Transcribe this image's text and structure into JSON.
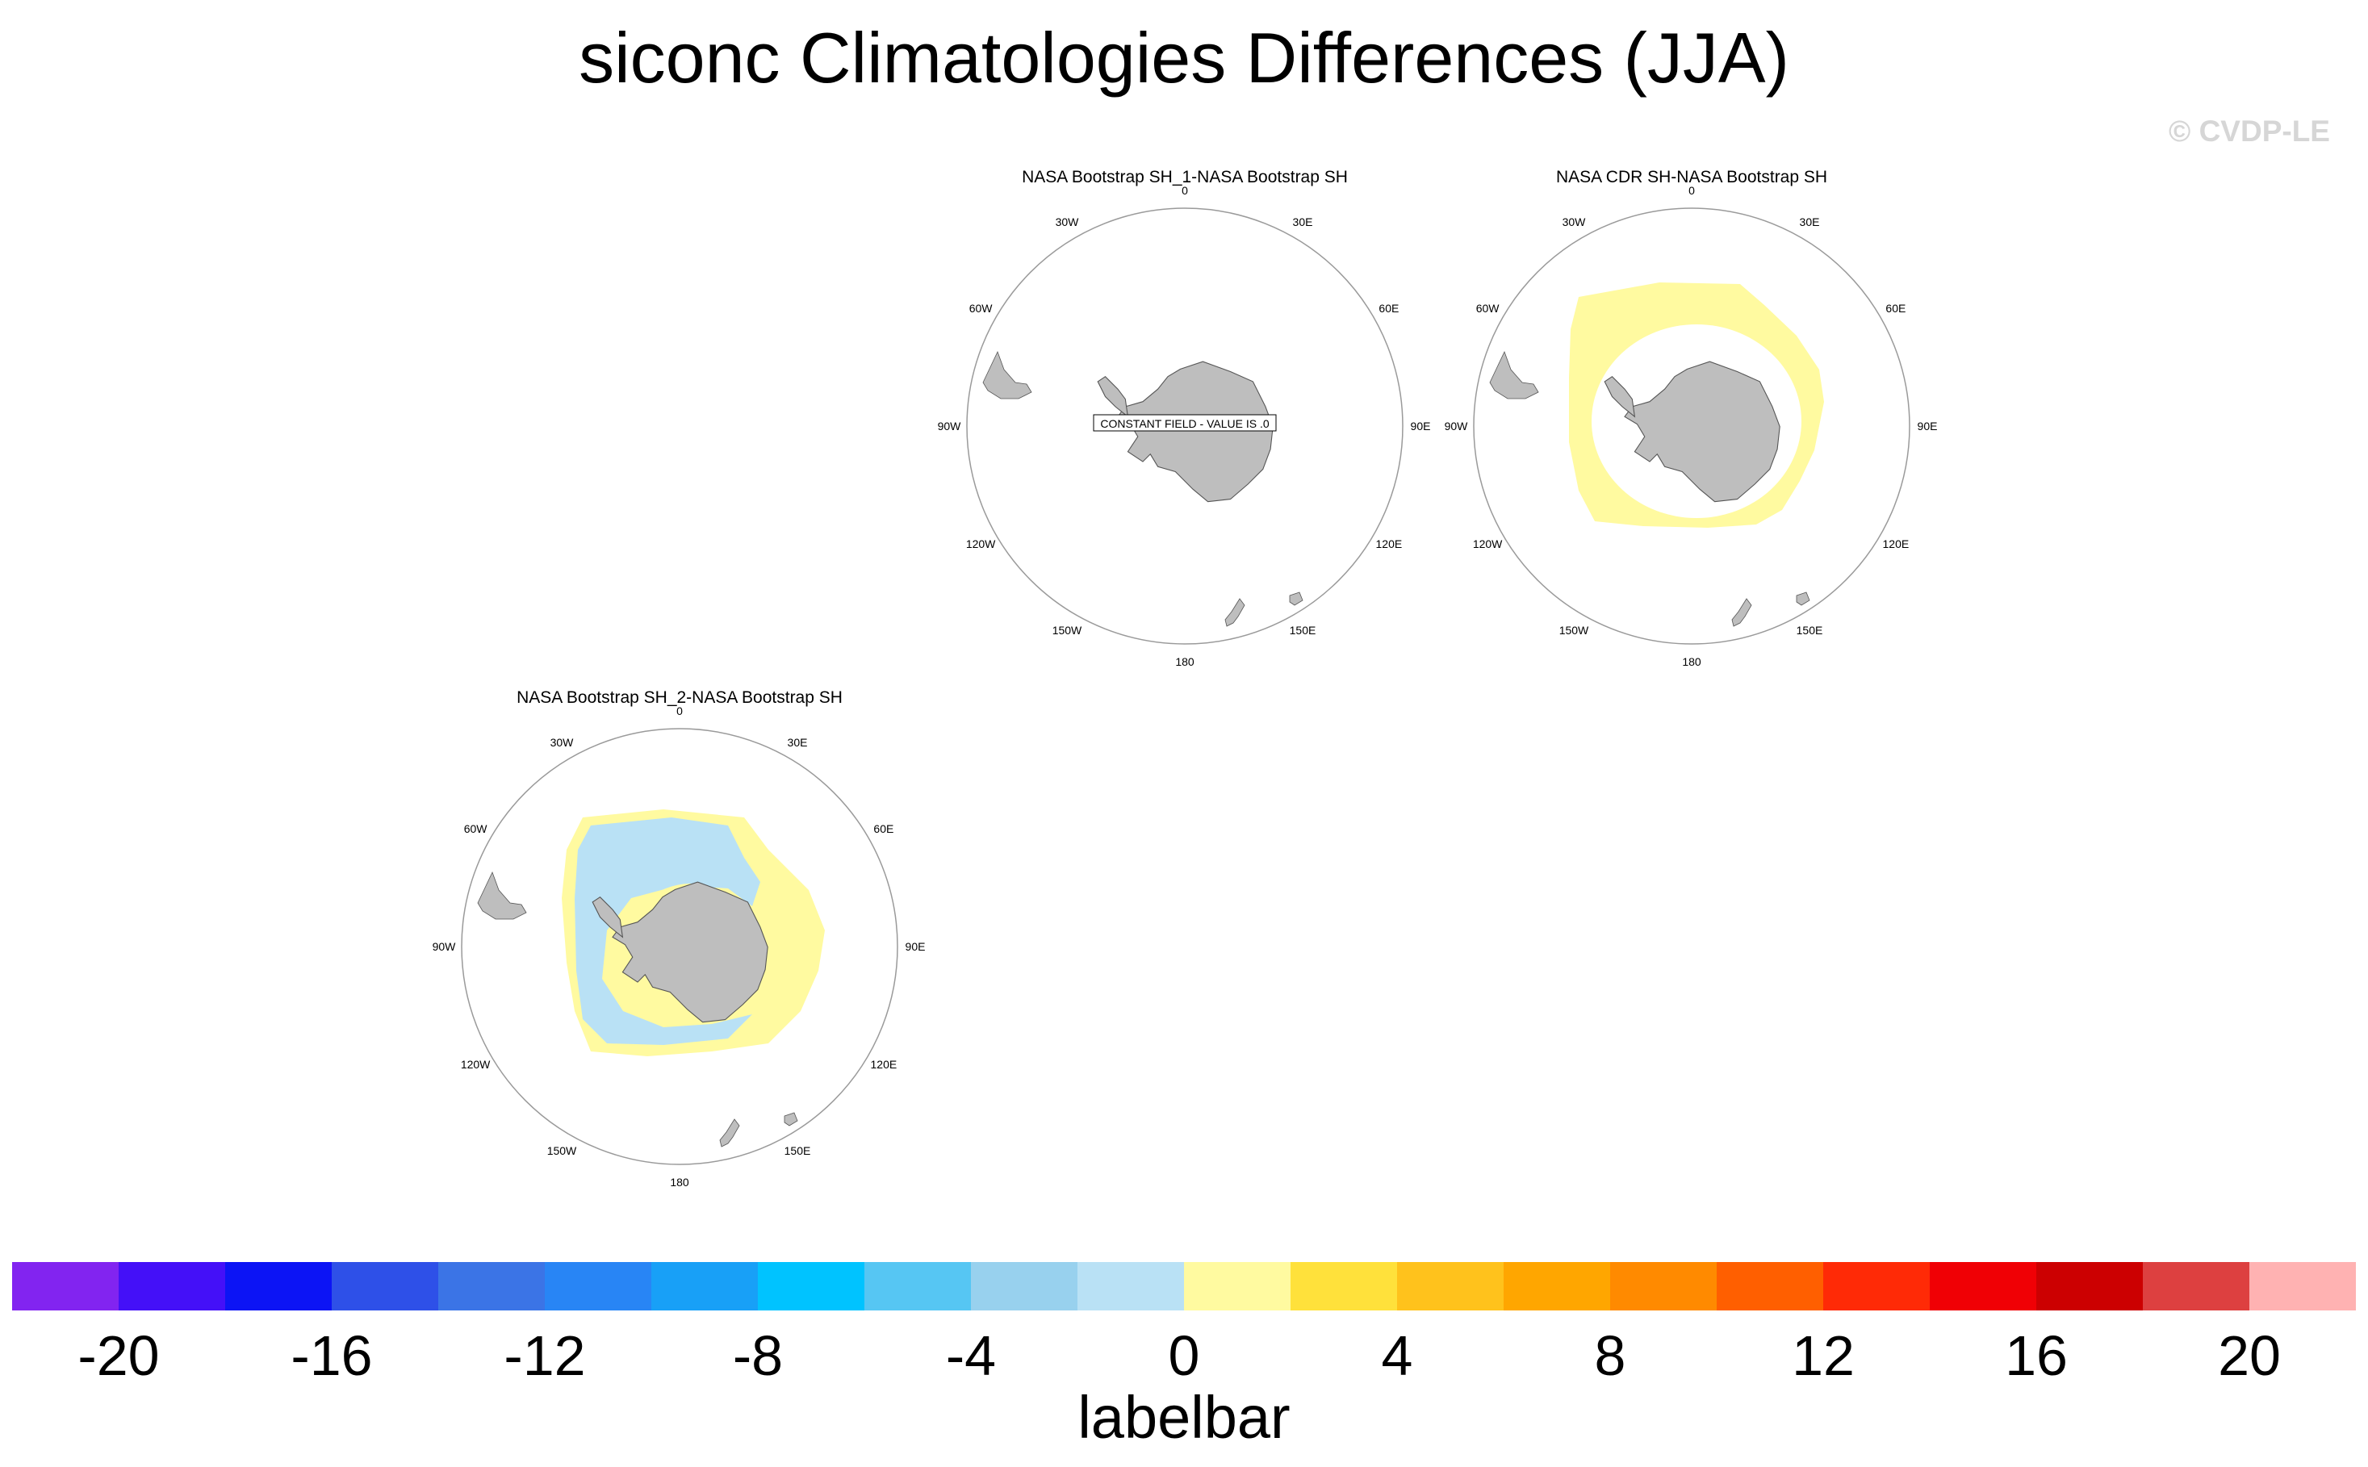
{
  "title": "siconc Climatologies Differences (JJA)",
  "copyright": "© CVDP-LE",
  "colors": {
    "land": "#bebebe",
    "coast": "#555555",
    "pos_small": "#fffaa0",
    "neg_small": "#b9e1f5"
  },
  "panels": [
    {
      "id": "p1",
      "title": "NASA Bootstrap SH_1-NASA Bootstrap SH",
      "note": "CONSTANT FIELD - VALUE IS .0",
      "anomaly": "none"
    },
    {
      "id": "p2",
      "title": "NASA CDR SH-NASA Bootstrap SH",
      "note": "",
      "anomaly": "positive-ring"
    },
    {
      "id": "p3",
      "title": "NASA Bootstrap SH_2-NASA Bootstrap SH",
      "note": "",
      "anomaly": "mixed"
    }
  ],
  "longitude_labels": [
    "0",
    "30E",
    "60E",
    "90E",
    "120E",
    "150E",
    "180",
    "150W",
    "120W",
    "90W",
    "60W",
    "30W"
  ],
  "labelbar": {
    "title": "labelbar",
    "colors": [
      "#8224f0",
      "#4410f8",
      "#0c14f5",
      "#2e50e8",
      "#3b74e6",
      "#2885f5",
      "#18a0f7",
      "#00c3ff",
      "#56c6f3",
      "#98d1ee",
      "#b9e1f5",
      "#fffaa0",
      "#ffe13b",
      "#ffc21c",
      "#ffa600",
      "#ff8a00",
      "#ff5f00",
      "#ff2a06",
      "#f00005",
      "#cc0001",
      "#dd4040",
      "#ffb2b2"
    ],
    "tick_labels": [
      "-20",
      "-16",
      "-12",
      "-8",
      "-4",
      "0",
      "4",
      "8",
      "12",
      "16",
      "20"
    ],
    "tick_values": [
      -20,
      -16,
      -12,
      -8,
      -4,
      0,
      4,
      8,
      12,
      16,
      20
    ],
    "boundaries": [
      -20,
      -18,
      -16,
      -14,
      -12,
      -10,
      -8,
      -6,
      -4,
      -2,
      0,
      2,
      4,
      6,
      8,
      10,
      12,
      14,
      16,
      18,
      20
    ]
  }
}
